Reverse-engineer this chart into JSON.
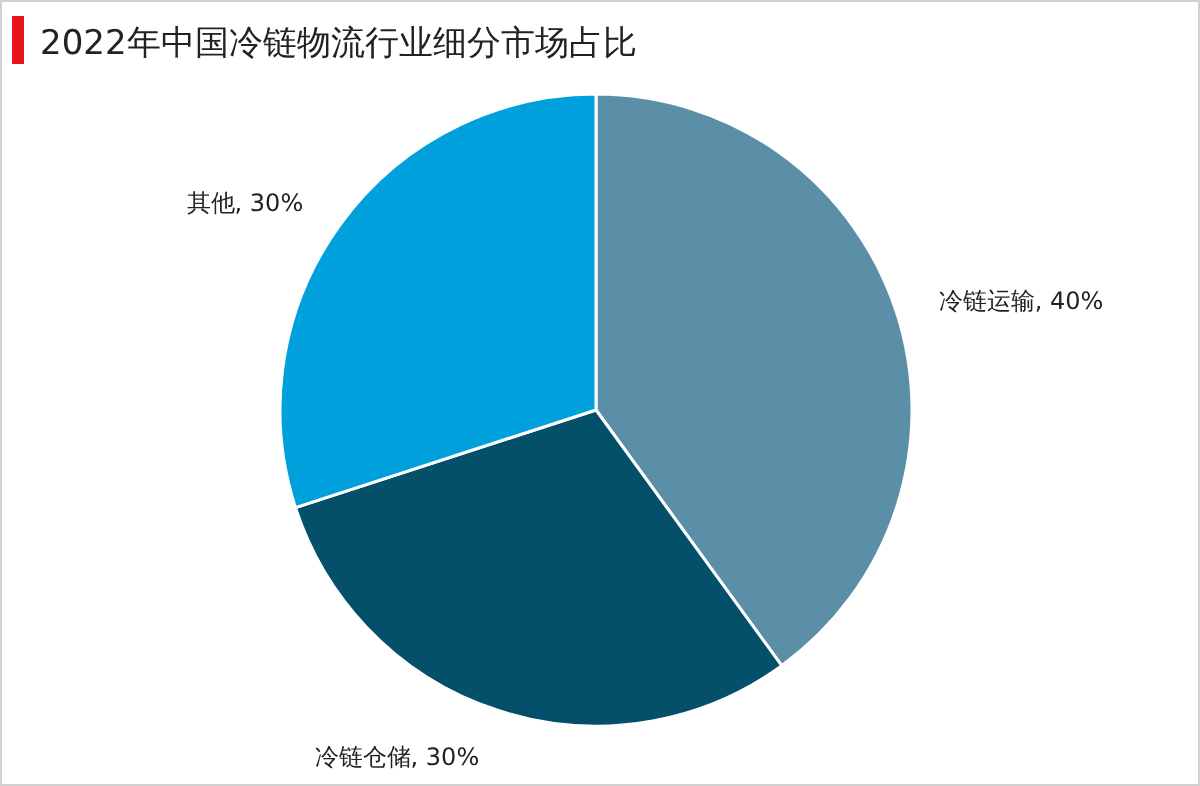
{
  "chart_data": {
    "type": "pie",
    "title": "2022年中国冷链物流行业细分市场占比",
    "categories": [
      "冷链运输",
      "冷链仓储",
      "其他"
    ],
    "values": [
      40,
      30,
      30
    ],
    "value_labels": [
      "40%",
      "30%",
      "30%"
    ],
    "colors": [
      "#5b8fa8",
      "#04506a",
      "#00a0dc"
    ]
  }
}
